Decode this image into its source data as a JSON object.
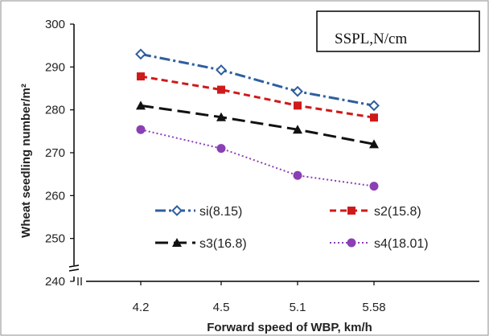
{
  "chart_data": {
    "type": "line",
    "title": "",
    "legend_title": "SSPL,N/cm",
    "xlabel": "Forward speed of WBP, km/h",
    "ylabel": "Wheat seedling number/m²",
    "categories": [
      "4.2",
      "4.5",
      "5.1",
      "5.58"
    ],
    "yticks": [
      "240",
      "250",
      "260",
      "270",
      "280",
      "290",
      "300"
    ],
    "ylim": [
      240,
      300
    ],
    "grid": false,
    "legend_position": "inside-bottom",
    "series": [
      {
        "name": "si(8.15)",
        "values": [
          293,
          289.3,
          284.3,
          281
        ],
        "color": "#2E5F9E",
        "dash": "dashdot",
        "marker": "diamond"
      },
      {
        "name": "s2(15.8)",
        "values": [
          287.8,
          284.7,
          281,
          278.2
        ],
        "color": "#D01A1A",
        "dash": "dash",
        "marker": "square"
      },
      {
        "name": "s3(16.8)",
        "values": [
          281,
          278.3,
          275.4,
          272
        ],
        "color": "#111111",
        "dash": "longdash",
        "marker": "triangle"
      },
      {
        "name": "s4(18.01)",
        "values": [
          275.4,
          271,
          264.7,
          262.2
        ],
        "color": "#8B3FB5",
        "dash": "dot",
        "marker": "circle"
      }
    ]
  }
}
